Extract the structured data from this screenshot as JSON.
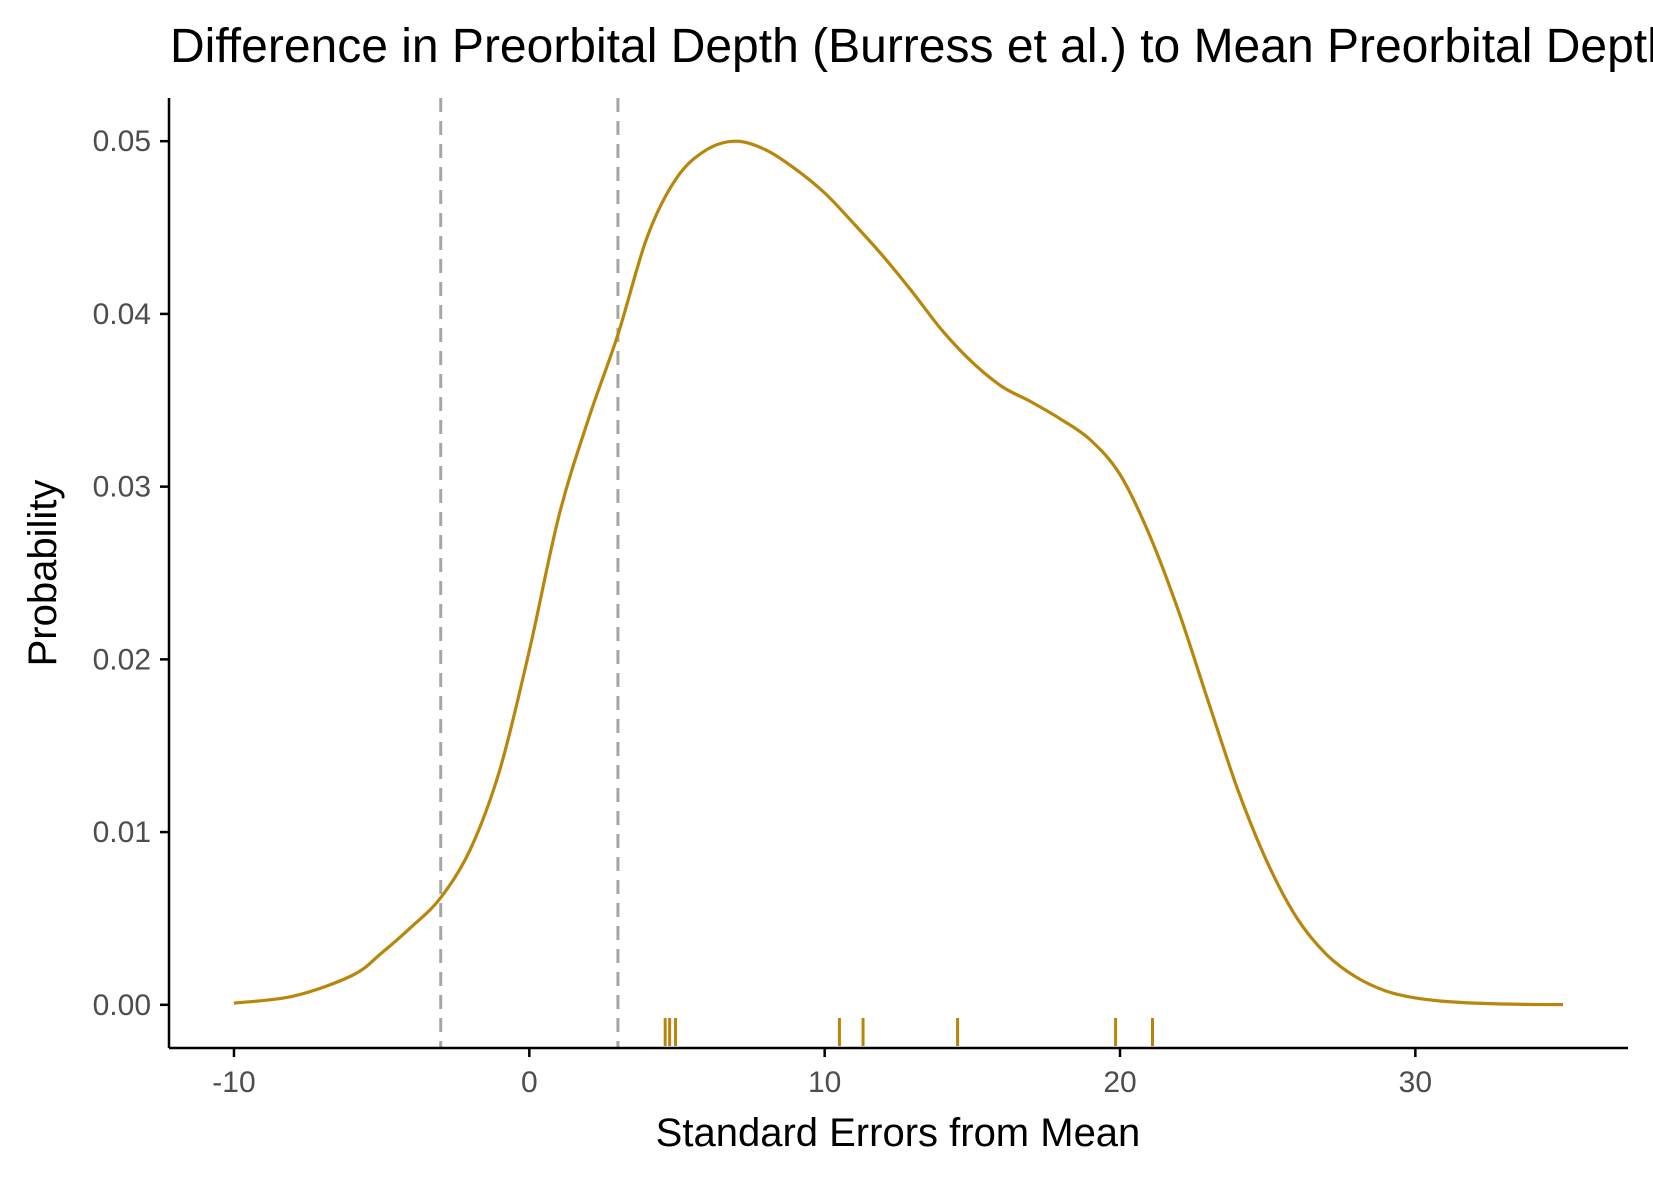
{
  "chart_data": {
    "type": "area",
    "title": "Difference in Preorbital Depth (Burress et al.) to Mean Preorbital Depth",
    "xlabel": "Standard Errors from Mean",
    "ylabel": "Probability",
    "xlim": [
      -12.2,
      37.2
    ],
    "ylim": [
      -0.0025,
      0.0525
    ],
    "x_ticks": [
      -10,
      0,
      10,
      20,
      30
    ],
    "x_tick_labels": [
      "-10",
      "0",
      "10",
      "20",
      "30"
    ],
    "y_ticks": [
      0,
      0.01,
      0.02,
      0.03,
      0.04,
      0.05
    ],
    "y_tick_labels": [
      "0.00",
      "0.01",
      "0.02",
      "0.03",
      "0.04",
      "0.05"
    ],
    "grid": false,
    "reference_lines_x": [
      -3,
      3
    ],
    "series": [
      {
        "color": "#b8860b",
        "x": [
          -10,
          -8,
          -6,
          -5,
          -4,
          -3,
          -2,
          -1,
          0,
          1,
          2,
          3,
          4,
          5,
          6,
          7,
          8,
          9,
          10,
          11,
          12,
          13,
          14,
          15,
          16,
          17,
          18,
          19,
          20,
          21,
          22,
          23,
          24,
          25,
          26,
          27,
          28,
          29,
          30,
          31,
          32,
          33,
          34,
          35
        ],
        "y": [
          0.0001,
          0.0005,
          0.0017,
          0.003,
          0.0045,
          0.0062,
          0.009,
          0.0136,
          0.0205,
          0.0283,
          0.0339,
          0.0388,
          0.0445,
          0.0479,
          0.0495,
          0.05,
          0.0495,
          0.0484,
          0.047,
          0.0452,
          0.0433,
          0.0412,
          0.039,
          0.0372,
          0.0358,
          0.0349,
          0.0339,
          0.0327,
          0.0307,
          0.0272,
          0.0227,
          0.0175,
          0.0124,
          0.0082,
          0.005,
          0.0029,
          0.0016,
          0.0008,
          0.0004,
          0.0002,
          0.0001,
          5e-05,
          2e-05,
          1e-05
        ]
      }
    ],
    "rug_x": [
      4.6,
      4.75,
      4.95,
      10.5,
      11.3,
      14.5,
      19.85,
      21.1
    ]
  }
}
